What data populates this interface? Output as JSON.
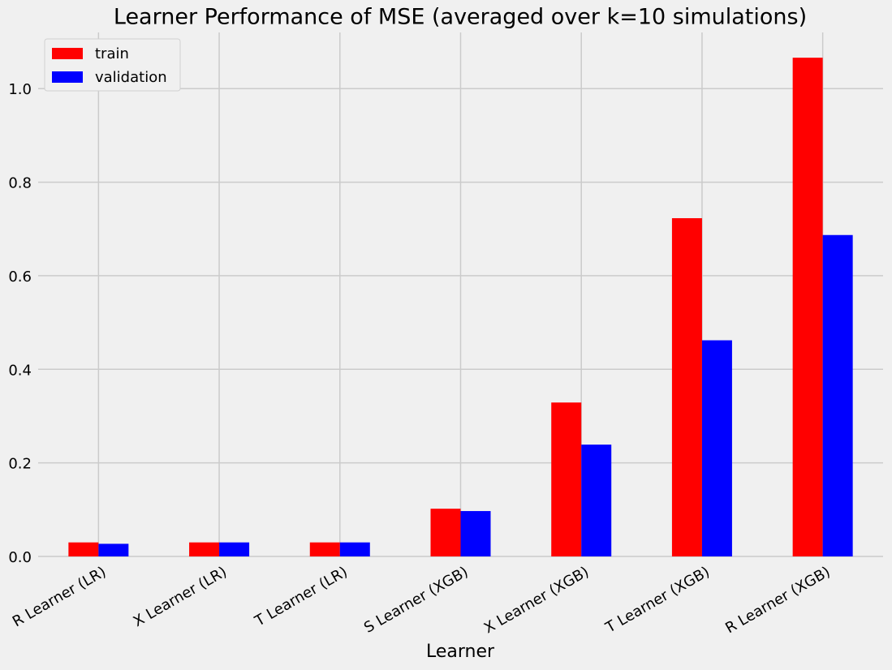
{
  "chart_data": {
    "type": "bar",
    "title": "Learner Performance of MSE (averaged over k=10 simulations)",
    "x_label": "Learner",
    "categories": [
      "R Learner (LR)",
      "X Learner (LR)",
      "T Learner (LR)",
      "S Learner (XGB)",
      "X Learner (XGB)",
      "T Learner (XGB)",
      "R Learner (XGB)"
    ],
    "series": [
      {
        "name": "train",
        "color": "#ff0000",
        "values": [
          0.03,
          0.03,
          0.03,
          0.102,
          0.329,
          0.723,
          1.066
        ]
      },
      {
        "name": "validation",
        "color": "#0000ff",
        "values": [
          0.027,
          0.03,
          0.03,
          0.097,
          0.239,
          0.462,
          0.687
        ]
      }
    ],
    "ylim": [
      0,
      1.12
    ],
    "yticks": [
      {
        "value": 0,
        "label": "0.0"
      },
      0.2,
      0.4,
      0.6,
      0.8,
      {
        "value": 1,
        "label": "1.0"
      }
    ],
    "grid": true,
    "legend": "upper-left"
  }
}
